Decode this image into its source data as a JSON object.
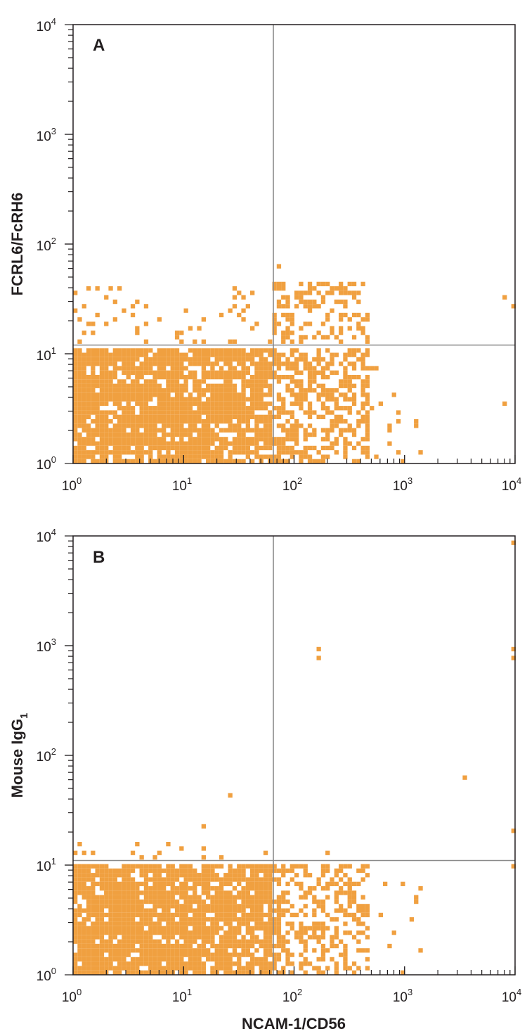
{
  "style": {
    "dot_color": "#f0a040",
    "axis_color": "#231f20",
    "quadrant_line_color": "#8a8a8a"
  },
  "panels": [
    {
      "label": "A",
      "ylabel": "FCRL6/FcRH6",
      "y_tick_labels": [
        {
          "base": "10",
          "exp": "0",
          "value": 1
        },
        {
          "base": "10",
          "exp": "1",
          "value": 10
        },
        {
          "base": "10",
          "exp": "2",
          "value": 100
        },
        {
          "base": "10",
          "exp": "3",
          "value": 1000
        },
        {
          "base": "10",
          "exp": "4",
          "value": 10000
        }
      ]
    },
    {
      "label": "B",
      "ylabel": "Mouse IgG",
      "ylabel_sub": "1",
      "y_tick_labels": [
        {
          "base": "10",
          "exp": "0",
          "value": 1
        },
        {
          "base": "10",
          "exp": "1",
          "value": 10
        },
        {
          "base": "10",
          "exp": "2",
          "value": 100
        },
        {
          "base": "10",
          "exp": "3",
          "value": 1000
        },
        {
          "base": "10",
          "exp": "4",
          "value": 10000
        }
      ]
    }
  ],
  "x_tick_labels": [
    {
      "base": "10",
      "exp": "0",
      "value": 1
    },
    {
      "base": "10",
      "exp": "1",
      "value": 10
    },
    {
      "base": "10",
      "exp": "2",
      "value": 100
    },
    {
      "base": "10",
      "exp": "3",
      "value": 1000
    },
    {
      "base": "10",
      "exp": "4",
      "value": 10000
    }
  ],
  "xlabel": "NCAM-1/CD56",
  "chart_data": [
    {
      "type": "scatter",
      "panel": "A",
      "xlabel": "",
      "ylabel": "FCRL6/FcRH6",
      "x_scale": "log",
      "y_scale": "log",
      "xlim": [
        1,
        10000
      ],
      "ylim": [
        1,
        10000
      ],
      "quadrant_gates": {
        "x": 65,
        "y": 12
      },
      "grid": false,
      "density_regions": [
        {
          "x_range": [
            1,
            65
          ],
          "y_range": [
            1,
            11
          ],
          "fill": 0.85,
          "count": 900,
          "seed": 11
        },
        {
          "x_range": [
            65,
            500
          ],
          "y_range": [
            1,
            11
          ],
          "fill": 0.5,
          "count": 260,
          "seed": 12
        },
        {
          "x_range": [
            65,
            500
          ],
          "y_range": [
            12,
            45
          ],
          "fill": 0.35,
          "count": 110,
          "seed": 13
        },
        {
          "x_range": [
            1,
            65
          ],
          "y_range": [
            12,
            40
          ],
          "fill": 0.08,
          "count": 40,
          "seed": 14
        },
        {
          "x_range": [
            500,
            1500
          ],
          "y_range": [
            1,
            8
          ],
          "fill": 0.06,
          "count": 14,
          "seed": 15
        }
      ],
      "points": [
        [
          75,
          60
        ],
        [
          8000,
          33
        ],
        [
          9500,
          27
        ],
        [
          8000,
          3.4
        ],
        [
          1.5,
          19
        ],
        [
          2.8,
          24
        ],
        [
          1300,
          2.3
        ],
        [
          1000,
          1.05
        ]
      ]
    },
    {
      "type": "scatter",
      "panel": "B",
      "xlabel": "NCAM-1/CD56",
      "ylabel": "Mouse IgG1",
      "x_scale": "log",
      "y_scale": "log",
      "xlim": [
        1,
        10000
      ],
      "ylim": [
        1,
        10000
      ],
      "quadrant_gates": {
        "x": 65,
        "y": 11
      },
      "grid": false,
      "density_regions": [
        {
          "x_range": [
            1,
            65
          ],
          "y_range": [
            1,
            10.5
          ],
          "fill": 0.85,
          "count": 900,
          "seed": 21
        },
        {
          "x_range": [
            65,
            500
          ],
          "y_range": [
            1,
            10.5
          ],
          "fill": 0.45,
          "count": 240,
          "seed": 22
        },
        {
          "x_range": [
            1,
            65
          ],
          "y_range": [
            11,
            16
          ],
          "fill": 0.08,
          "count": 12,
          "seed": 23
        },
        {
          "x_range": [
            500,
            1500
          ],
          "y_range": [
            1,
            7
          ],
          "fill": 0.05,
          "count": 10,
          "seed": 24
        }
      ],
      "points": [
        [
          170,
          950
        ],
        [
          170,
          780
        ],
        [
          3500,
          62
        ],
        [
          27,
          42
        ],
        [
          15,
          23
        ],
        [
          10000,
          9000
        ],
        [
          10000,
          950
        ],
        [
          10000,
          780
        ],
        [
          10000,
          20
        ],
        [
          10000,
          10
        ],
        [
          1.2,
          15
        ],
        [
          200,
          13.5
        ]
      ]
    }
  ]
}
